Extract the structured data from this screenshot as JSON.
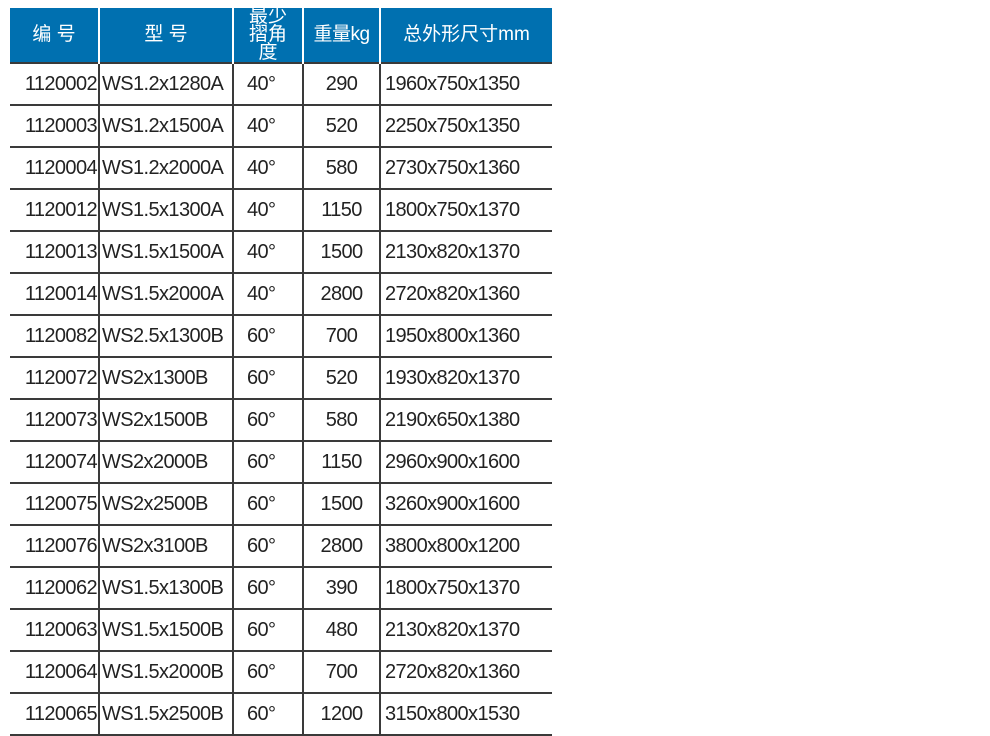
{
  "colors": {
    "header_bg": "#0070b0",
    "header_text": "#ffffff",
    "grid": "#3a3a3a"
  },
  "headers": [
    "编 号",
    "型 号",
    "最少摺角度",
    "重量kg",
    "总外形尺寸mm"
  ],
  "rows": [
    [
      "1120002",
      "WS1.2x1280A",
      "40°",
      "290",
      "1960x750x1350"
    ],
    [
      "1120003",
      "WS1.2x1500A",
      "40°",
      "520",
      "2250x750x1350"
    ],
    [
      "1120004",
      "WS1.2x2000A",
      "40°",
      "580",
      "2730x750x1360"
    ],
    [
      "1120012",
      "WS1.5x1300A",
      "40°",
      "1150",
      "1800x750x1370"
    ],
    [
      "1120013",
      "WS1.5x1500A",
      "40°",
      "1500",
      "2130x820x1370"
    ],
    [
      "1120014",
      "WS1.5x2000A",
      "40°",
      "2800",
      "2720x820x1360"
    ],
    [
      "1120082",
      "WS2.5x1300B",
      "60°",
      "700",
      "1950x800x1360"
    ],
    [
      "1120072",
      "WS2x1300B",
      "60°",
      "520",
      "1930x820x1370"
    ],
    [
      "1120073",
      "WS2x1500B",
      "60°",
      "580",
      "2190x650x1380"
    ],
    [
      "1120074",
      "WS2x2000B",
      "60°",
      "1150",
      "2960x900x1600"
    ],
    [
      "1120075",
      "WS2x2500B",
      "60°",
      "1500",
      "3260x900x1600"
    ],
    [
      "1120076",
      "WS2x3100B",
      "60°",
      "2800",
      "3800x800x1200"
    ],
    [
      "1120062",
      "WS1.5x1300B",
      "60°",
      "390",
      "1800x750x1370"
    ],
    [
      "1120063",
      "WS1.5x1500B",
      "60°",
      "480",
      "2130x820x1370"
    ],
    [
      "1120064",
      "WS1.5x2000B",
      "60°",
      "700",
      "2720x820x1360"
    ],
    [
      "1120065",
      "WS1.5x2500B",
      "60°",
      "1200",
      "3150x800x1530"
    ]
  ]
}
